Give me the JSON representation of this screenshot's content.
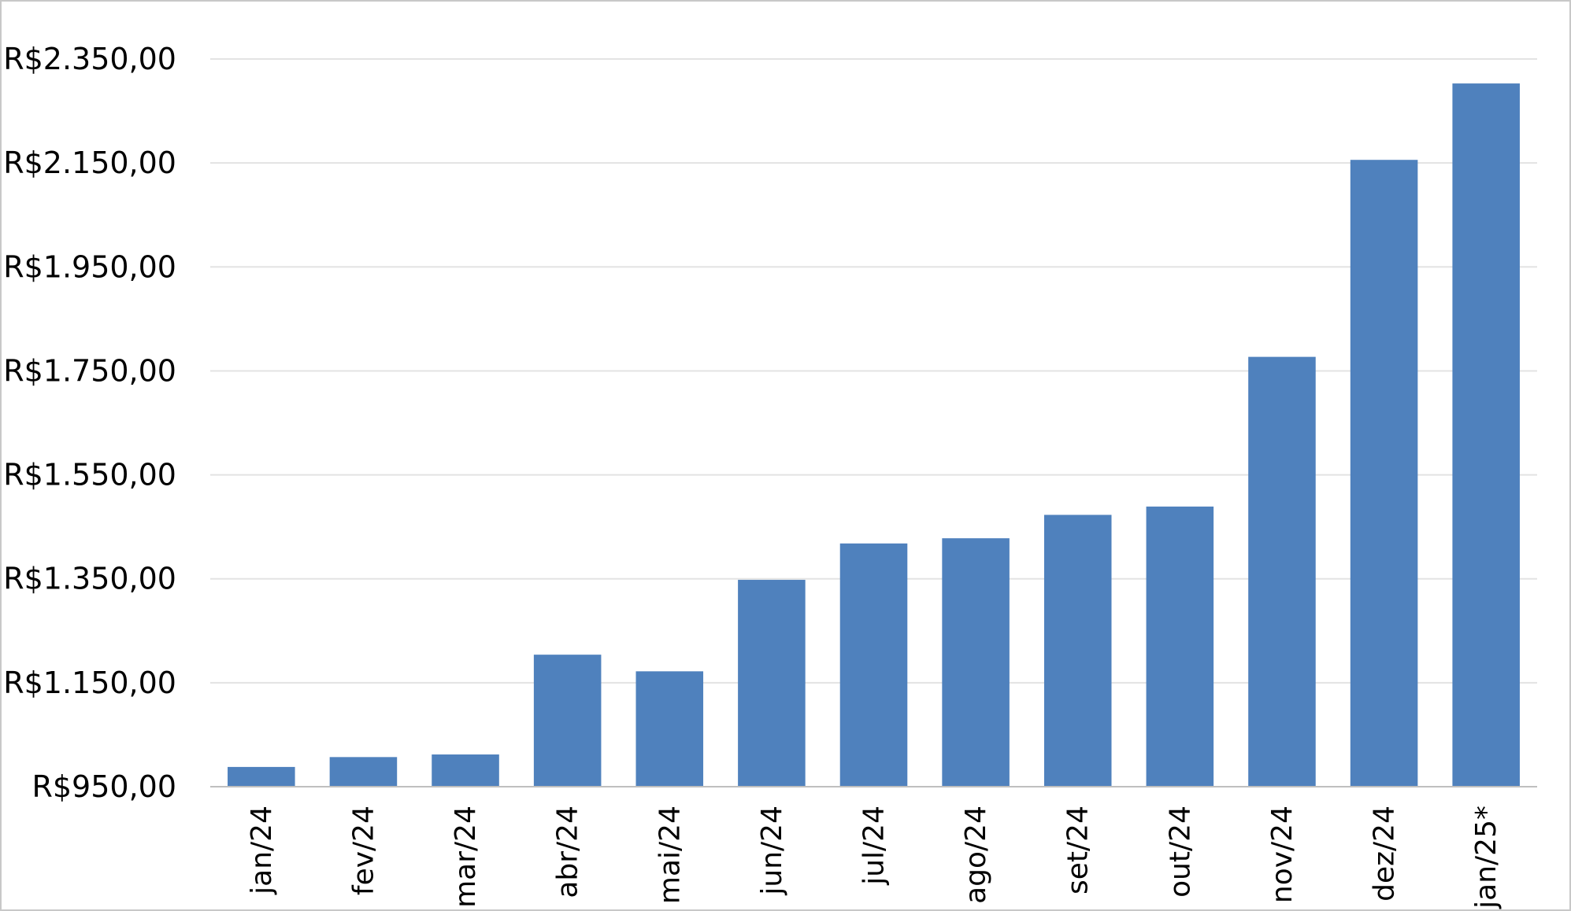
{
  "chart_data": {
    "type": "bar",
    "title": "",
    "xlabel": "",
    "ylabel": "",
    "categories": [
      "jan/24",
      "fev/24",
      "mar/24",
      "abr/24",
      "mai/24",
      "jun/24",
      "jul/24",
      "ago/24",
      "set/24",
      "out/24",
      "nov/24",
      "dez/24",
      "jan/25*"
    ],
    "values": [
      988,
      1007,
      1012,
      1204,
      1172,
      1348,
      1418,
      1428,
      1473,
      1489,
      1777,
      2156,
      2303
    ],
    "ylim": [
      950,
      2400
    ],
    "yticks": [
      950,
      1150,
      1350,
      1550,
      1750,
      1950,
      2150,
      2350
    ],
    "ytick_labels": [
      "R$950,00",
      "R$1.150,00",
      "R$1.350,00",
      "R$1.550,00",
      "R$1.750,00",
      "R$1.950,00",
      "R$2.150,00",
      "R$2.350,00"
    ],
    "grid": true,
    "legend": "none",
    "colors": {
      "bar": "#4f81bd",
      "grid": "#e3e3e3",
      "axis": "#bfbfbf"
    }
  }
}
